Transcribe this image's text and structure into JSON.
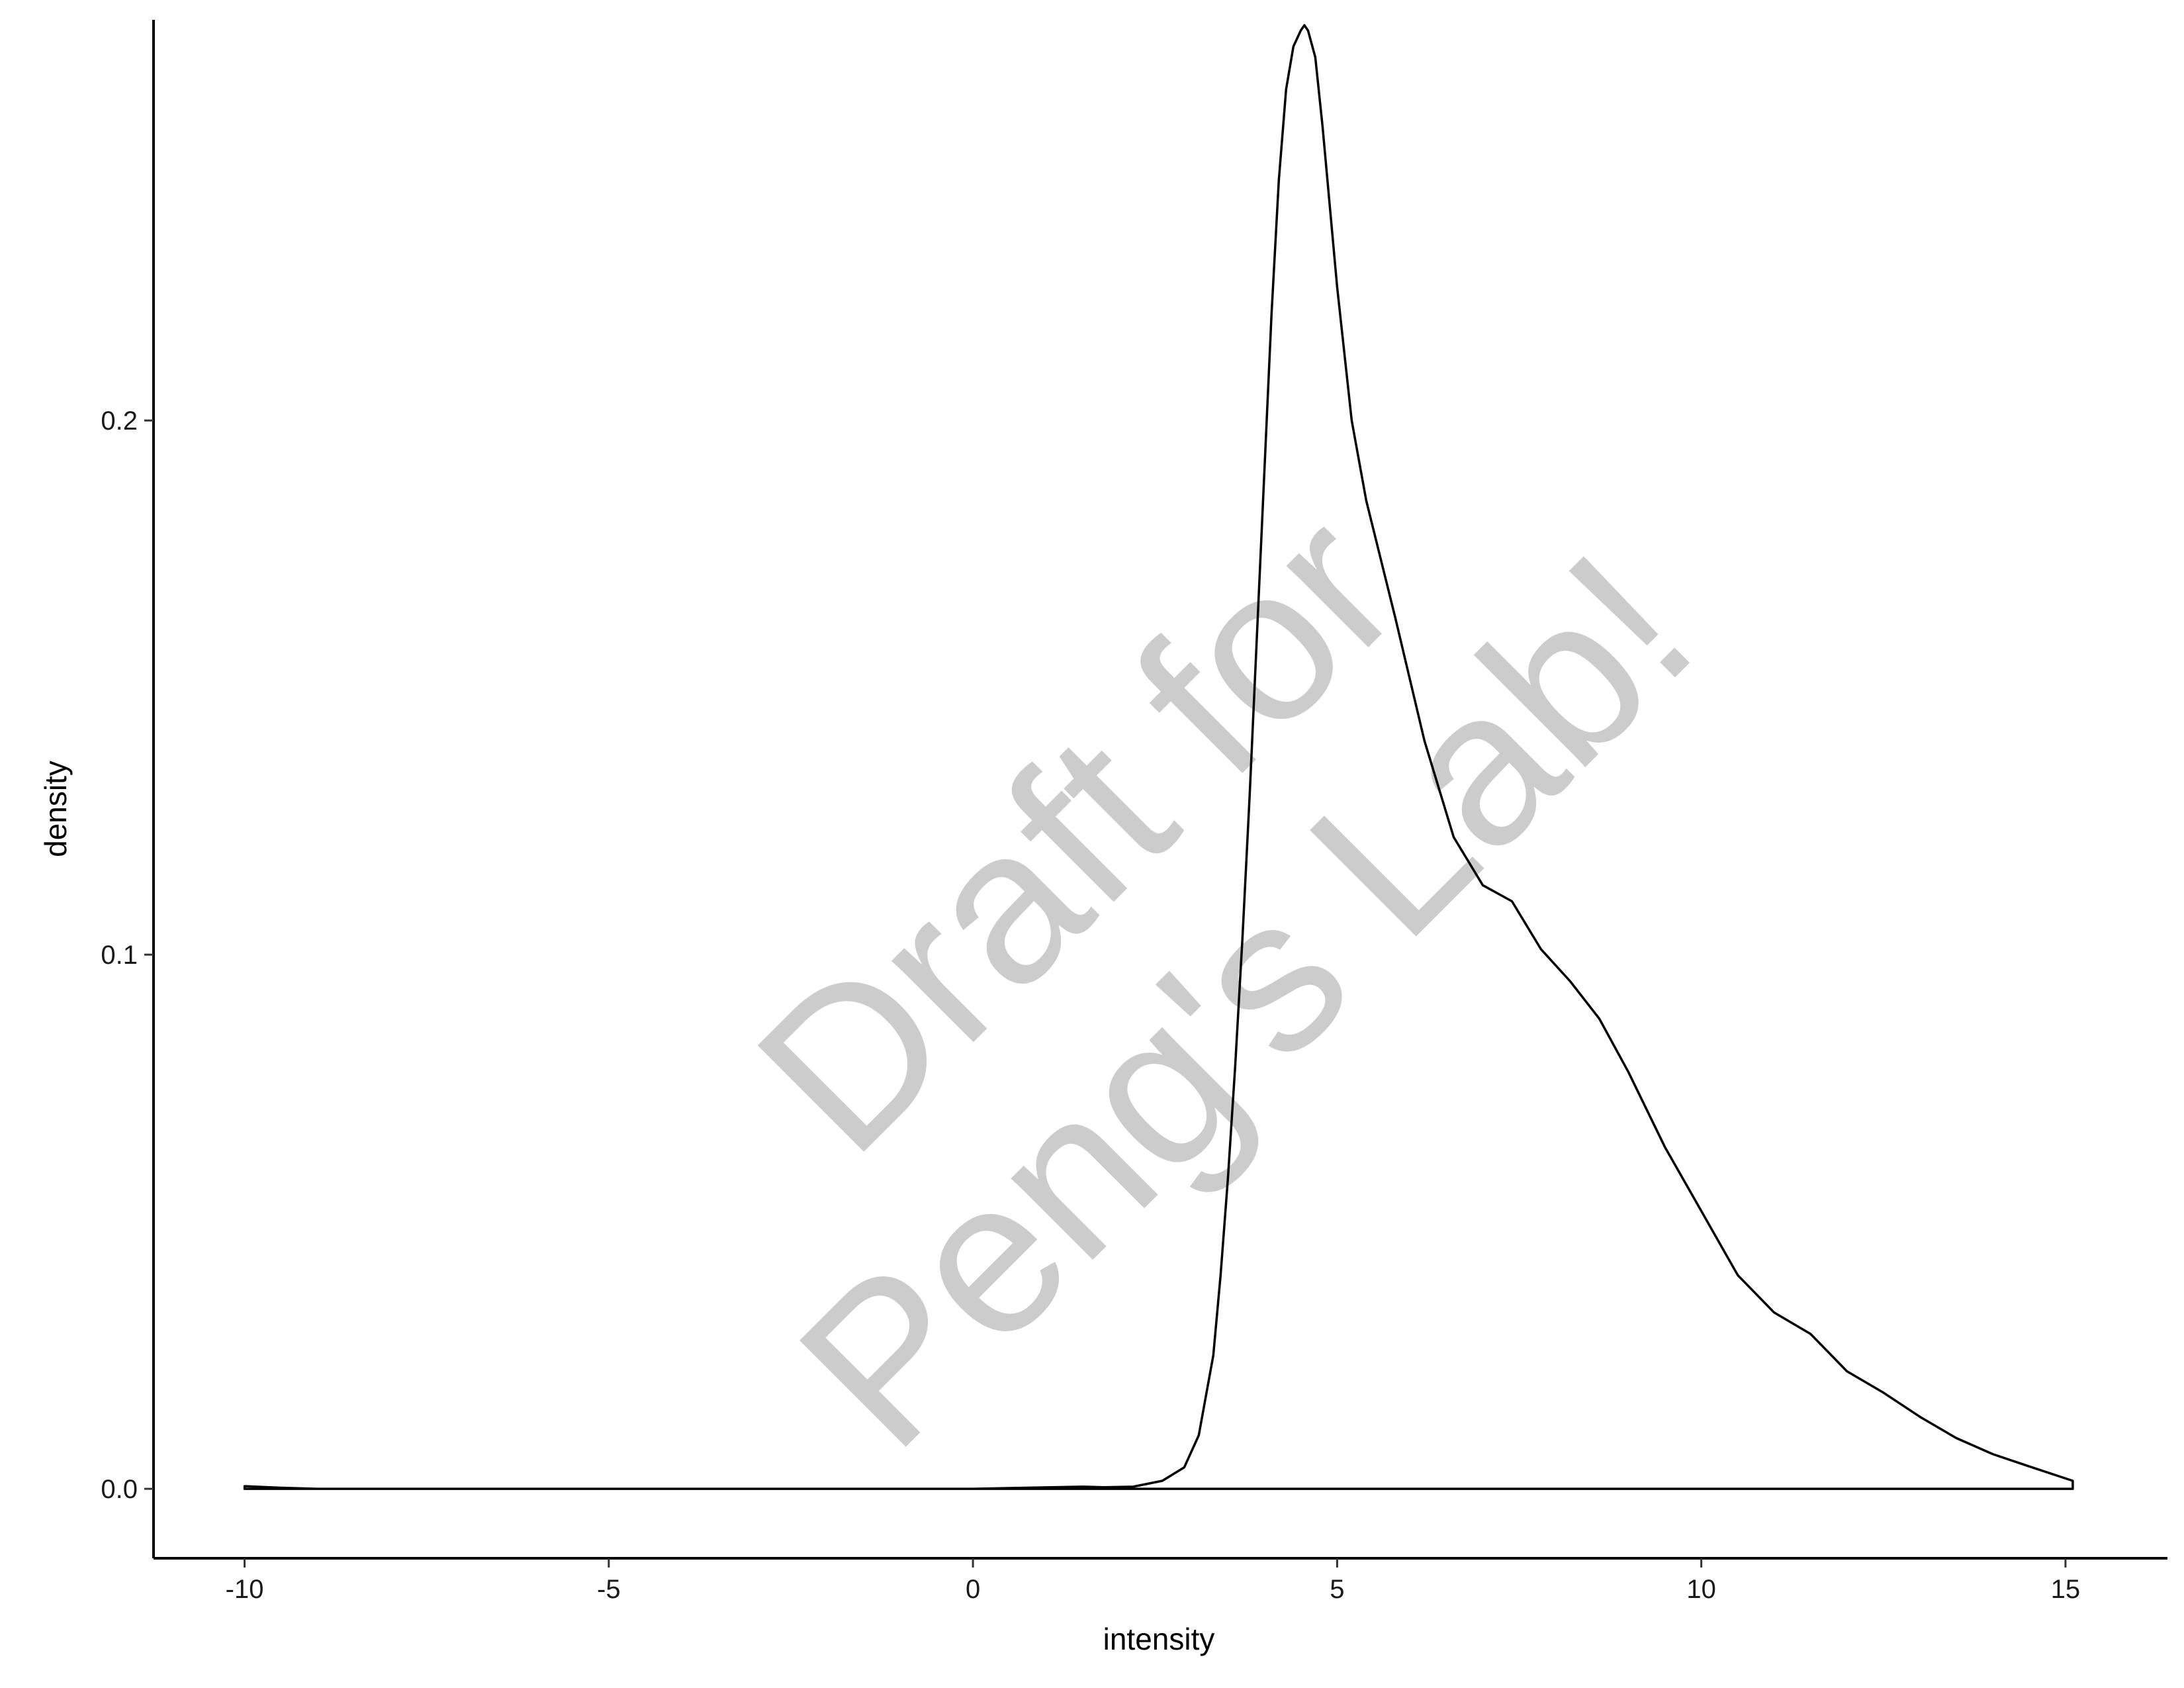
{
  "chart_data": {
    "type": "line",
    "xlabel": "intensity",
    "ylabel": "density",
    "xlim": [
      -11.25,
      16.4
    ],
    "ylim": [
      -0.013,
      0.275
    ],
    "x_ticks": [
      {
        "value": -10,
        "label": "-10"
      },
      {
        "value": -5,
        "label": "-5"
      },
      {
        "value": 0,
        "label": "0"
      },
      {
        "value": 5,
        "label": "5"
      },
      {
        "value": 10,
        "label": "10"
      },
      {
        "value": 15,
        "label": "15"
      }
    ],
    "y_ticks": [
      {
        "value": 0,
        "label": "0.0"
      },
      {
        "value": 0.1,
        "label": "0.1"
      },
      {
        "value": 0.2,
        "label": "0.2"
      }
    ],
    "grid": false,
    "legend": "none",
    "series": [
      {
        "x": [
          -10.0,
          -9.5,
          -9.0,
          -5.0,
          0.0,
          1.5,
          1.8,
          2.2,
          2.6,
          2.9,
          3.1,
          3.3,
          3.4,
          3.5,
          3.6,
          3.7,
          3.8,
          3.9,
          4.0,
          4.1,
          4.2,
          4.3,
          4.4,
          4.5,
          4.55,
          4.6,
          4.7,
          4.8,
          5.0,
          5.2,
          5.4,
          5.8,
          6.2,
          6.6,
          7.0,
          7.4,
          7.8,
          8.2,
          8.6,
          9.0,
          9.5,
          10.0,
          10.5,
          11.0,
          11.5,
          12.0,
          12.5,
          13.0,
          13.5,
          14.0,
          14.5,
          15.1
        ],
        "y": [
          0.0005,
          0.0002,
          0.0,
          0.0,
          0.0,
          0.0004,
          0.0003,
          0.0004,
          0.0015,
          0.004,
          0.01,
          0.025,
          0.04,
          0.058,
          0.079,
          0.103,
          0.13,
          0.16,
          0.19,
          0.22,
          0.245,
          0.262,
          0.27,
          0.273,
          0.274,
          0.273,
          0.268,
          0.255,
          0.225,
          0.2,
          0.185,
          0.163,
          0.14,
          0.122,
          0.113,
          0.11,
          0.101,
          0.095,
          0.088,
          0.078,
          0.064,
          0.052,
          0.04,
          0.033,
          0.029,
          0.022,
          0.018,
          0.0135,
          0.0095,
          0.0065,
          0.0042,
          0.0015
        ]
      }
    ]
  },
  "watermark": {
    "line1": "Draft for",
    "line2": "Peng's Lab!"
  }
}
